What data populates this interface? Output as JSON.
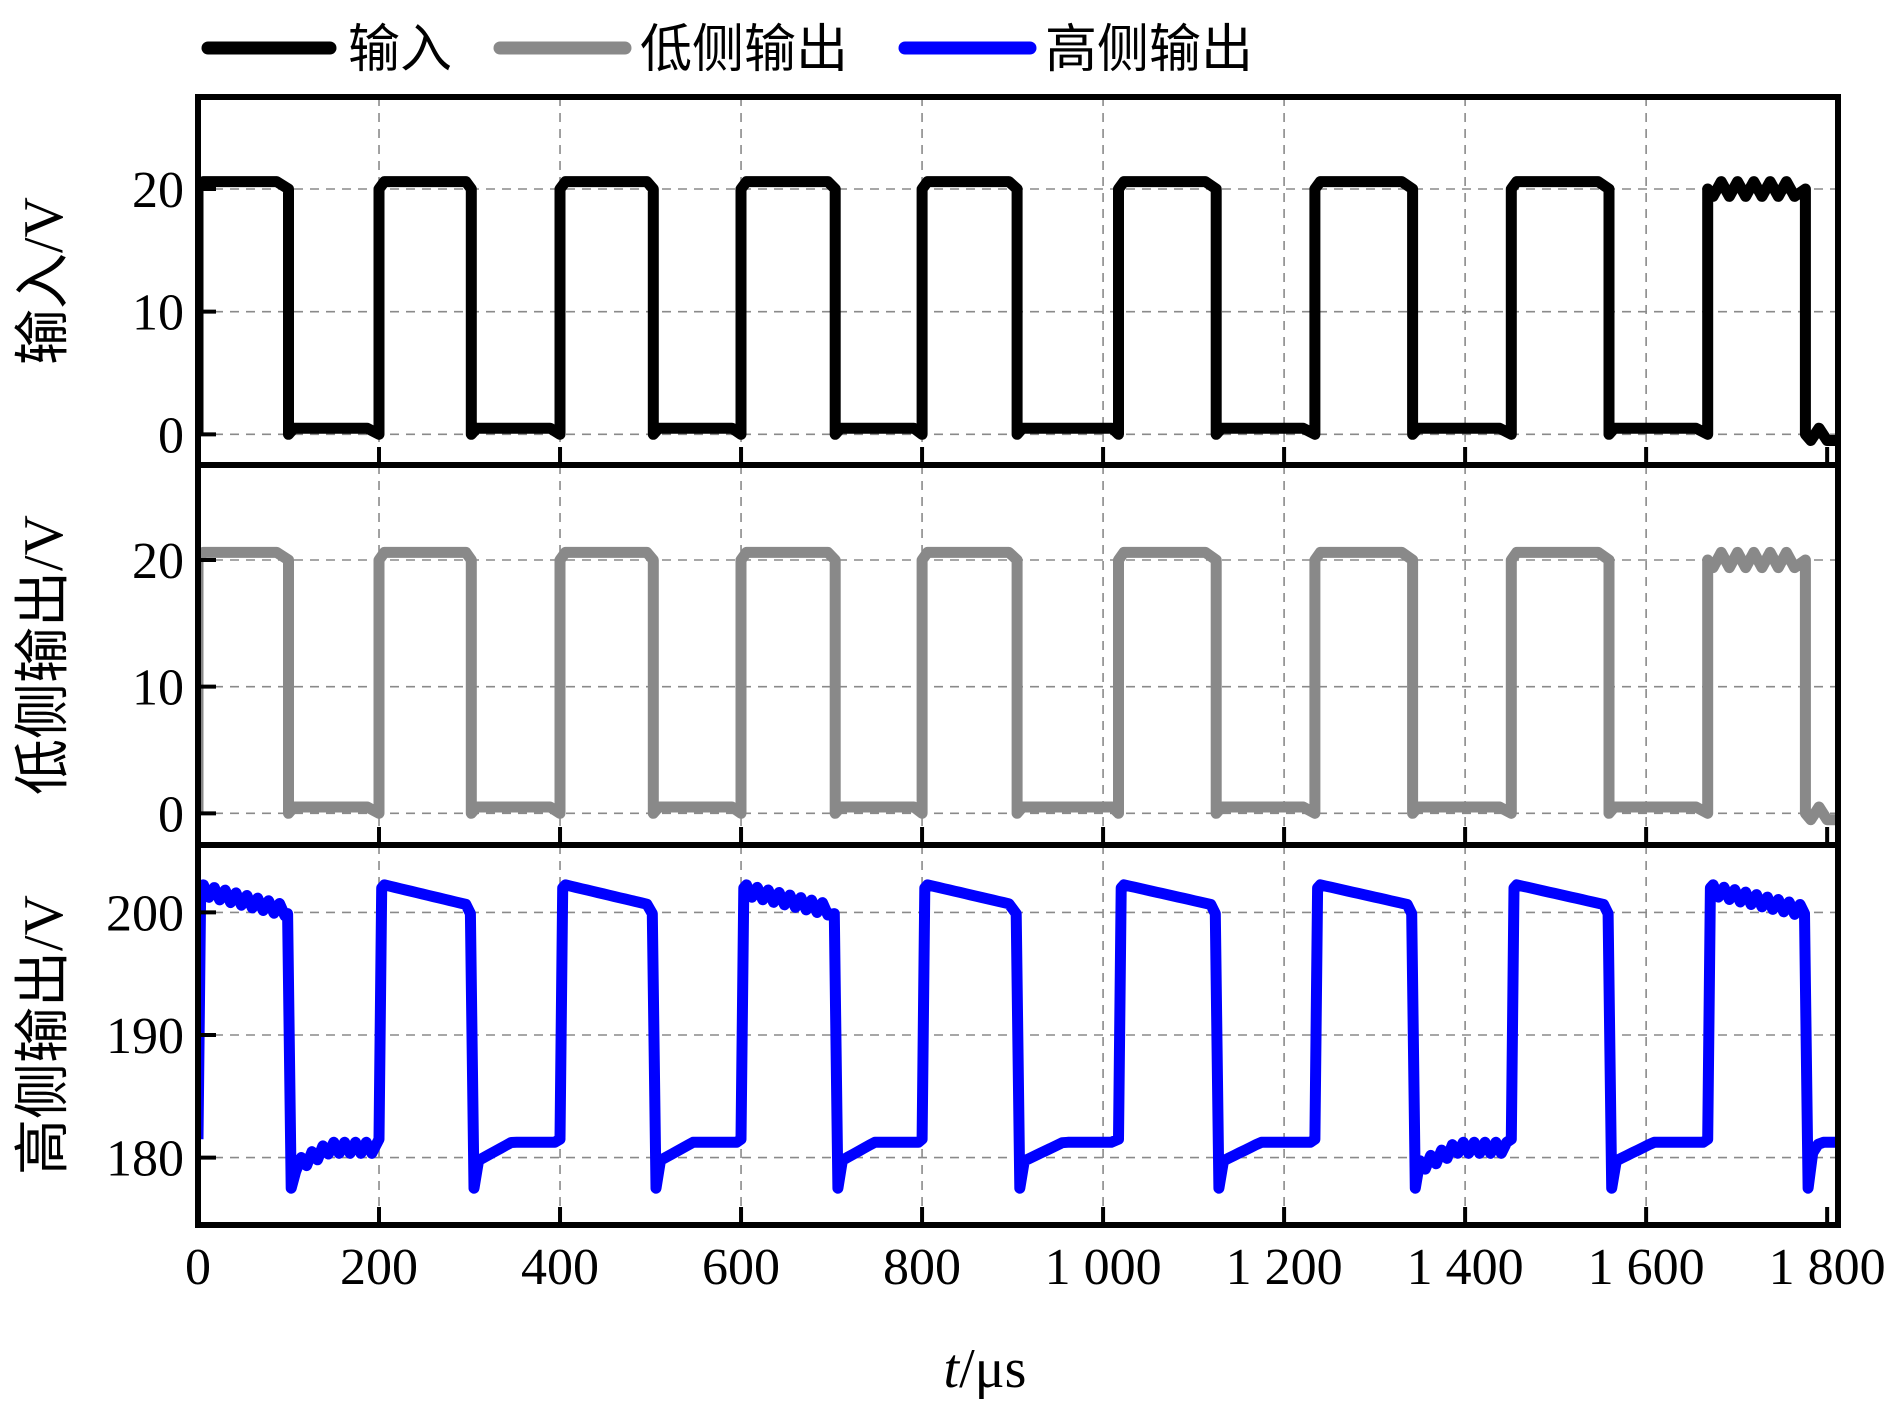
{
  "legend": [
    {
      "label": "输入",
      "color": "#000000"
    },
    {
      "label": "低侧输出",
      "color": "#898989"
    },
    {
      "label": "高侧输出",
      "color": "#0000ff"
    }
  ],
  "x_axis": {
    "label_italic": "t",
    "label_unit": "/μs",
    "ticks": [
      0,
      200,
      400,
      600,
      800,
      1000,
      1200,
      1400,
      1600,
      1800
    ],
    "tick_labels": [
      "0",
      "200",
      "400",
      "600",
      "800",
      "1 000",
      "1 200",
      "1 400",
      "1 600",
      "1 800"
    ],
    "range": [
      0,
      1812
    ]
  },
  "chart_data": [
    {
      "type": "line",
      "name": "输入",
      "ylabel": "输入/V",
      "color": "#000000",
      "yticks": [
        0,
        10,
        20
      ],
      "ylim": [
        -2.5,
        27.5
      ],
      "grid": true,
      "high": 20,
      "low": 0,
      "rise_times": [
        0,
        200,
        400,
        600,
        800,
        1017,
        1234,
        1451,
        1668
      ],
      "fall_times": [
        100,
        302,
        503,
        704,
        905,
        1125,
        1342,
        1559,
        1776
      ],
      "x_end": 1810
    },
    {
      "type": "line",
      "name": "低侧输出",
      "ylabel": "低侧输出/V",
      "color": "#898989",
      "yticks": [
        0,
        10,
        20
      ],
      "ylim": [
        -2.5,
        27.5
      ],
      "grid": true,
      "high": 20,
      "low": 0,
      "rise_times": [
        0,
        200,
        400,
        600,
        800,
        1017,
        1234,
        1451,
        1668
      ],
      "fall_times": [
        100,
        302,
        503,
        704,
        905,
        1125,
        1342,
        1559,
        1776
      ],
      "x_end": 1810
    },
    {
      "type": "line",
      "name": "高侧输出",
      "ylabel": "高侧输出/V",
      "color": "#0000ff",
      "yticks": [
        180,
        190,
        200
      ],
      "ylim": [
        174.5,
        205.5
      ],
      "grid": true,
      "high": 200.5,
      "low": 180.5,
      "rise_times": [
        0,
        200,
        400,
        600,
        800,
        1017,
        1234,
        1451,
        1668
      ],
      "fall_times": [
        100,
        302,
        503,
        704,
        905,
        1125,
        1342,
        1559,
        1776
      ],
      "x_end": 1810
    }
  ]
}
